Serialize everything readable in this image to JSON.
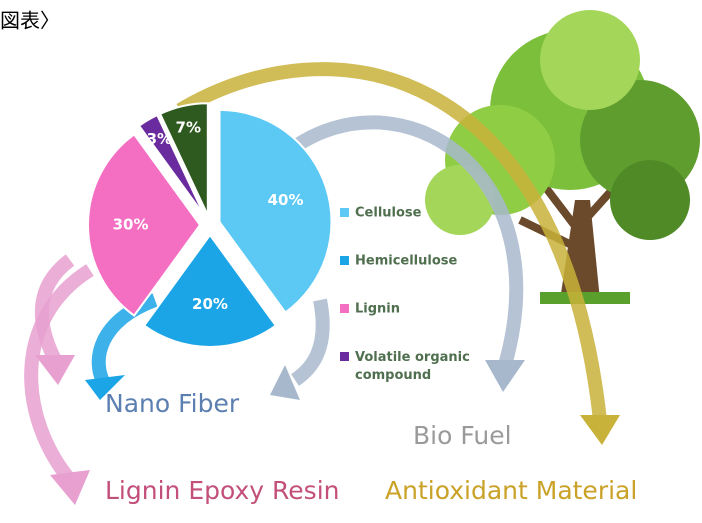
{
  "chart_data": {
    "type": "pie",
    "title": "図表〉",
    "categories": [
      "Cellulose",
      "Hemicellulose",
      "Lignin",
      "Volatile organic compound",
      null
    ],
    "values": [
      40,
      20,
      30,
      3,
      7
    ],
    "value_labels": [
      "40%",
      "20%",
      "30%",
      "3%",
      "7%"
    ],
    "colors": [
      "#5cc9f5",
      "#1ba4e6",
      "#f46ec2",
      "#6a2b9e",
      "#2f5a1f"
    ],
    "annotations": [
      "Nano Fiber",
      "Bio Fuel",
      "Lignin Epoxy Resin",
      "Antioxidant Material"
    ]
  }
}
